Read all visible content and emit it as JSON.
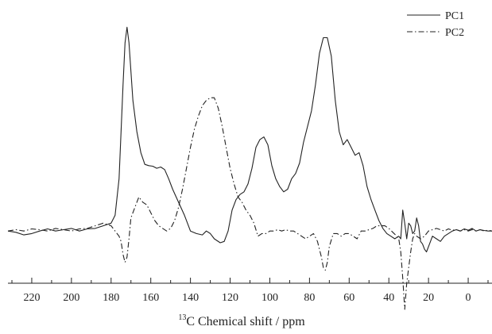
{
  "chart_data": {
    "type": "line",
    "title": "",
    "xlabel_sup": "13",
    "xlabel": "C Chemical shift / ppm",
    "ylabel": "",
    "x_reversed": true,
    "xlim": [
      232,
      -12
    ],
    "ylim": [
      -0.2,
      0.86
    ],
    "xticks": [
      220,
      200,
      180,
      160,
      140,
      120,
      100,
      80,
      60,
      40,
      20,
      0
    ],
    "y_axis_visible": false,
    "grid": false,
    "legend_position": "top-right",
    "series": [
      {
        "name": "PC1",
        "line_style": "solid",
        "color": "#222222",
        "points": [
          [
            232,
            0.0
          ],
          [
            228,
            -0.005
          ],
          [
            224,
            -0.015
          ],
          [
            220,
            -0.01
          ],
          [
            216,
            0.0
          ],
          [
            212,
            0.008
          ],
          [
            208,
            0.0
          ],
          [
            204,
            0.005
          ],
          [
            200,
            0.01
          ],
          [
            196,
            0.0
          ],
          [
            192,
            0.008
          ],
          [
            188,
            0.01
          ],
          [
            184,
            0.02
          ],
          [
            180,
            0.03
          ],
          [
            178,
            0.06
          ],
          [
            176,
            0.2
          ],
          [
            174,
            0.56
          ],
          [
            173,
            0.72
          ],
          [
            172,
            0.78
          ],
          [
            171,
            0.72
          ],
          [
            169,
            0.5
          ],
          [
            167,
            0.38
          ],
          [
            165,
            0.3
          ],
          [
            163,
            0.255
          ],
          [
            161,
            0.25
          ],
          [
            159,
            0.248
          ],
          [
            157,
            0.24
          ],
          [
            155,
            0.245
          ],
          [
            153,
            0.235
          ],
          [
            151,
            0.2
          ],
          [
            149,
            0.16
          ],
          [
            146,
            0.11
          ],
          [
            143,
            0.06
          ],
          [
            140,
            0.0
          ],
          [
            137,
            -0.01
          ],
          [
            134,
            -0.015
          ],
          [
            132,
            0.0
          ],
          [
            130,
            -0.01
          ],
          [
            128,
            -0.03
          ],
          [
            125,
            -0.045
          ],
          [
            123,
            -0.04
          ],
          [
            121,
            0.0
          ],
          [
            119,
            0.08
          ],
          [
            117,
            0.12
          ],
          [
            115,
            0.14
          ],
          [
            113,
            0.15
          ],
          [
            111,
            0.18
          ],
          [
            109,
            0.24
          ],
          [
            107,
            0.32
          ],
          [
            105,
            0.35
          ],
          [
            103,
            0.36
          ],
          [
            101,
            0.33
          ],
          [
            99,
            0.25
          ],
          [
            97,
            0.2
          ],
          [
            95,
            0.17
          ],
          [
            93,
            0.15
          ],
          [
            91,
            0.16
          ],
          [
            89,
            0.2
          ],
          [
            87,
            0.22
          ],
          [
            85,
            0.26
          ],
          [
            83,
            0.34
          ],
          [
            81,
            0.4
          ],
          [
            79,
            0.46
          ],
          [
            77,
            0.56
          ],
          [
            75,
            0.68
          ],
          [
            73,
            0.74
          ],
          [
            71,
            0.74
          ],
          [
            69,
            0.67
          ],
          [
            67,
            0.5
          ],
          [
            65,
            0.38
          ],
          [
            63,
            0.33
          ],
          [
            61,
            0.35
          ],
          [
            59,
            0.32
          ],
          [
            57,
            0.29
          ],
          [
            55,
            0.3
          ],
          [
            53,
            0.25
          ],
          [
            51,
            0.17
          ],
          [
            49,
            0.12
          ],
          [
            47,
            0.08
          ],
          [
            45,
            0.04
          ],
          [
            43,
            0.01
          ],
          [
            41,
            -0.01
          ],
          [
            39,
            -0.02
          ],
          [
            37,
            -0.03
          ],
          [
            35,
            -0.02
          ],
          [
            34,
            -0.03
          ],
          [
            33,
            0.08
          ],
          [
            32,
            0.03
          ],
          [
            31,
            -0.03
          ],
          [
            30,
            0.03
          ],
          [
            29,
            0.02
          ],
          [
            28,
            -0.01
          ],
          [
            27,
            0.0
          ],
          [
            26,
            0.05
          ],
          [
            25,
            0.02
          ],
          [
            24,
            -0.04
          ],
          [
            23,
            -0.05
          ],
          [
            22,
            -0.07
          ],
          [
            21,
            -0.08
          ],
          [
            20,
            -0.06
          ],
          [
            18,
            -0.02
          ],
          [
            16,
            -0.03
          ],
          [
            14,
            -0.04
          ],
          [
            12,
            -0.02
          ],
          [
            10,
            -0.01
          ],
          [
            8,
            0.0
          ],
          [
            6,
            0.005
          ],
          [
            4,
            0.0
          ],
          [
            2,
            0.008
          ],
          [
            0,
            0.003
          ],
          [
            -2,
            0.01
          ],
          [
            -4,
            0.0
          ],
          [
            -6,
            0.005
          ],
          [
            -8,
            0.002
          ],
          [
            -10,
            0.0
          ],
          [
            -12,
            0.0
          ]
        ]
      },
      {
        "name": "PC2",
        "line_style": "dash-dot",
        "color": "#222222",
        "points": [
          [
            232,
            0.0
          ],
          [
            228,
            0.005
          ],
          [
            224,
            0.0
          ],
          [
            220,
            0.008
          ],
          [
            216,
            0.005
          ],
          [
            212,
            0.0
          ],
          [
            208,
            0.01
          ],
          [
            204,
            0.005
          ],
          [
            200,
            0.0
          ],
          [
            196,
            0.008
          ],
          [
            192,
            0.01
          ],
          [
            188,
            0.02
          ],
          [
            184,
            0.03
          ],
          [
            180,
            0.02
          ],
          [
            178,
            0.0
          ],
          [
            176,
            -0.02
          ],
          [
            175,
            -0.04
          ],
          [
            174,
            -0.09
          ],
          [
            173,
            -0.12
          ],
          [
            172,
            -0.1
          ],
          [
            171,
            -0.03
          ],
          [
            170,
            0.05
          ],
          [
            168,
            0.09
          ],
          [
            166,
            0.13
          ],
          [
            164,
            0.11
          ],
          [
            162,
            0.1
          ],
          [
            160,
            0.07
          ],
          [
            158,
            0.04
          ],
          [
            156,
            0.02
          ],
          [
            154,
            0.01
          ],
          [
            152,
            0.0
          ],
          [
            150,
            0.01
          ],
          [
            148,
            0.04
          ],
          [
            146,
            0.09
          ],
          [
            144,
            0.16
          ],
          [
            142,
            0.24
          ],
          [
            140,
            0.32
          ],
          [
            138,
            0.39
          ],
          [
            136,
            0.44
          ],
          [
            134,
            0.48
          ],
          [
            132,
            0.5
          ],
          [
            130,
            0.51
          ],
          [
            128,
            0.51
          ],
          [
            126,
            0.47
          ],
          [
            124,
            0.4
          ],
          [
            122,
            0.32
          ],
          [
            120,
            0.24
          ],
          [
            118,
            0.18
          ],
          [
            116,
            0.13
          ],
          [
            114,
            0.11
          ],
          [
            112,
            0.08
          ],
          [
            110,
            0.06
          ],
          [
            108,
            0.03
          ],
          [
            106,
            -0.02
          ],
          [
            104,
            -0.01
          ],
          [
            102,
            -0.01
          ],
          [
            100,
            0.0
          ],
          [
            98,
            0.0
          ],
          [
            96,
            0.005
          ],
          [
            94,
            0.0
          ],
          [
            92,
            0.005
          ],
          [
            90,
            0.0
          ],
          [
            88,
            0.0
          ],
          [
            86,
            -0.01
          ],
          [
            84,
            -0.02
          ],
          [
            82,
            -0.03
          ],
          [
            80,
            -0.02
          ],
          [
            78,
            -0.01
          ],
          [
            76,
            -0.04
          ],
          [
            74,
            -0.1
          ],
          [
            73,
            -0.14
          ],
          [
            72,
            -0.15
          ],
          [
            71,
            -0.12
          ],
          [
            70,
            -0.06
          ],
          [
            68,
            -0.01
          ],
          [
            66,
            -0.01
          ],
          [
            64,
            -0.02
          ],
          [
            62,
            -0.01
          ],
          [
            60,
            -0.01
          ],
          [
            58,
            -0.02
          ],
          [
            56,
            -0.03
          ],
          [
            54,
            0.0
          ],
          [
            52,
            0.0
          ],
          [
            50,
            0.005
          ],
          [
            48,
            0.01
          ],
          [
            46,
            0.02
          ],
          [
            44,
            0.02
          ],
          [
            42,
            0.02
          ],
          [
            40,
            0.01
          ],
          [
            38,
            -0.005
          ],
          [
            36,
            -0.02
          ],
          [
            35,
            -0.03
          ],
          [
            34,
            -0.08
          ],
          [
            33,
            -0.18
          ],
          [
            32,
            -0.3
          ],
          [
            31,
            -0.2
          ],
          [
            30,
            -0.14
          ],
          [
            29,
            -0.08
          ],
          [
            28,
            -0.03
          ],
          [
            27,
            -0.01
          ],
          [
            26,
            -0.02
          ],
          [
            24,
            -0.03
          ],
          [
            22,
            -0.02
          ],
          [
            20,
            0.0
          ],
          [
            18,
            0.005
          ],
          [
            16,
            0.01
          ],
          [
            14,
            0.005
          ],
          [
            12,
            0.0
          ],
          [
            10,
            0.008
          ],
          [
            8,
            0.003
          ],
          [
            6,
            0.005
          ],
          [
            4,
            0.0
          ],
          [
            2,
            0.005
          ],
          [
            0,
            0.0
          ],
          [
            -2,
            0.005
          ],
          [
            -4,
            0.0
          ],
          [
            -6,
            0.005
          ],
          [
            -8,
            0.0
          ],
          [
            -10,
            0.003
          ],
          [
            -12,
            0.0
          ]
        ]
      }
    ]
  }
}
